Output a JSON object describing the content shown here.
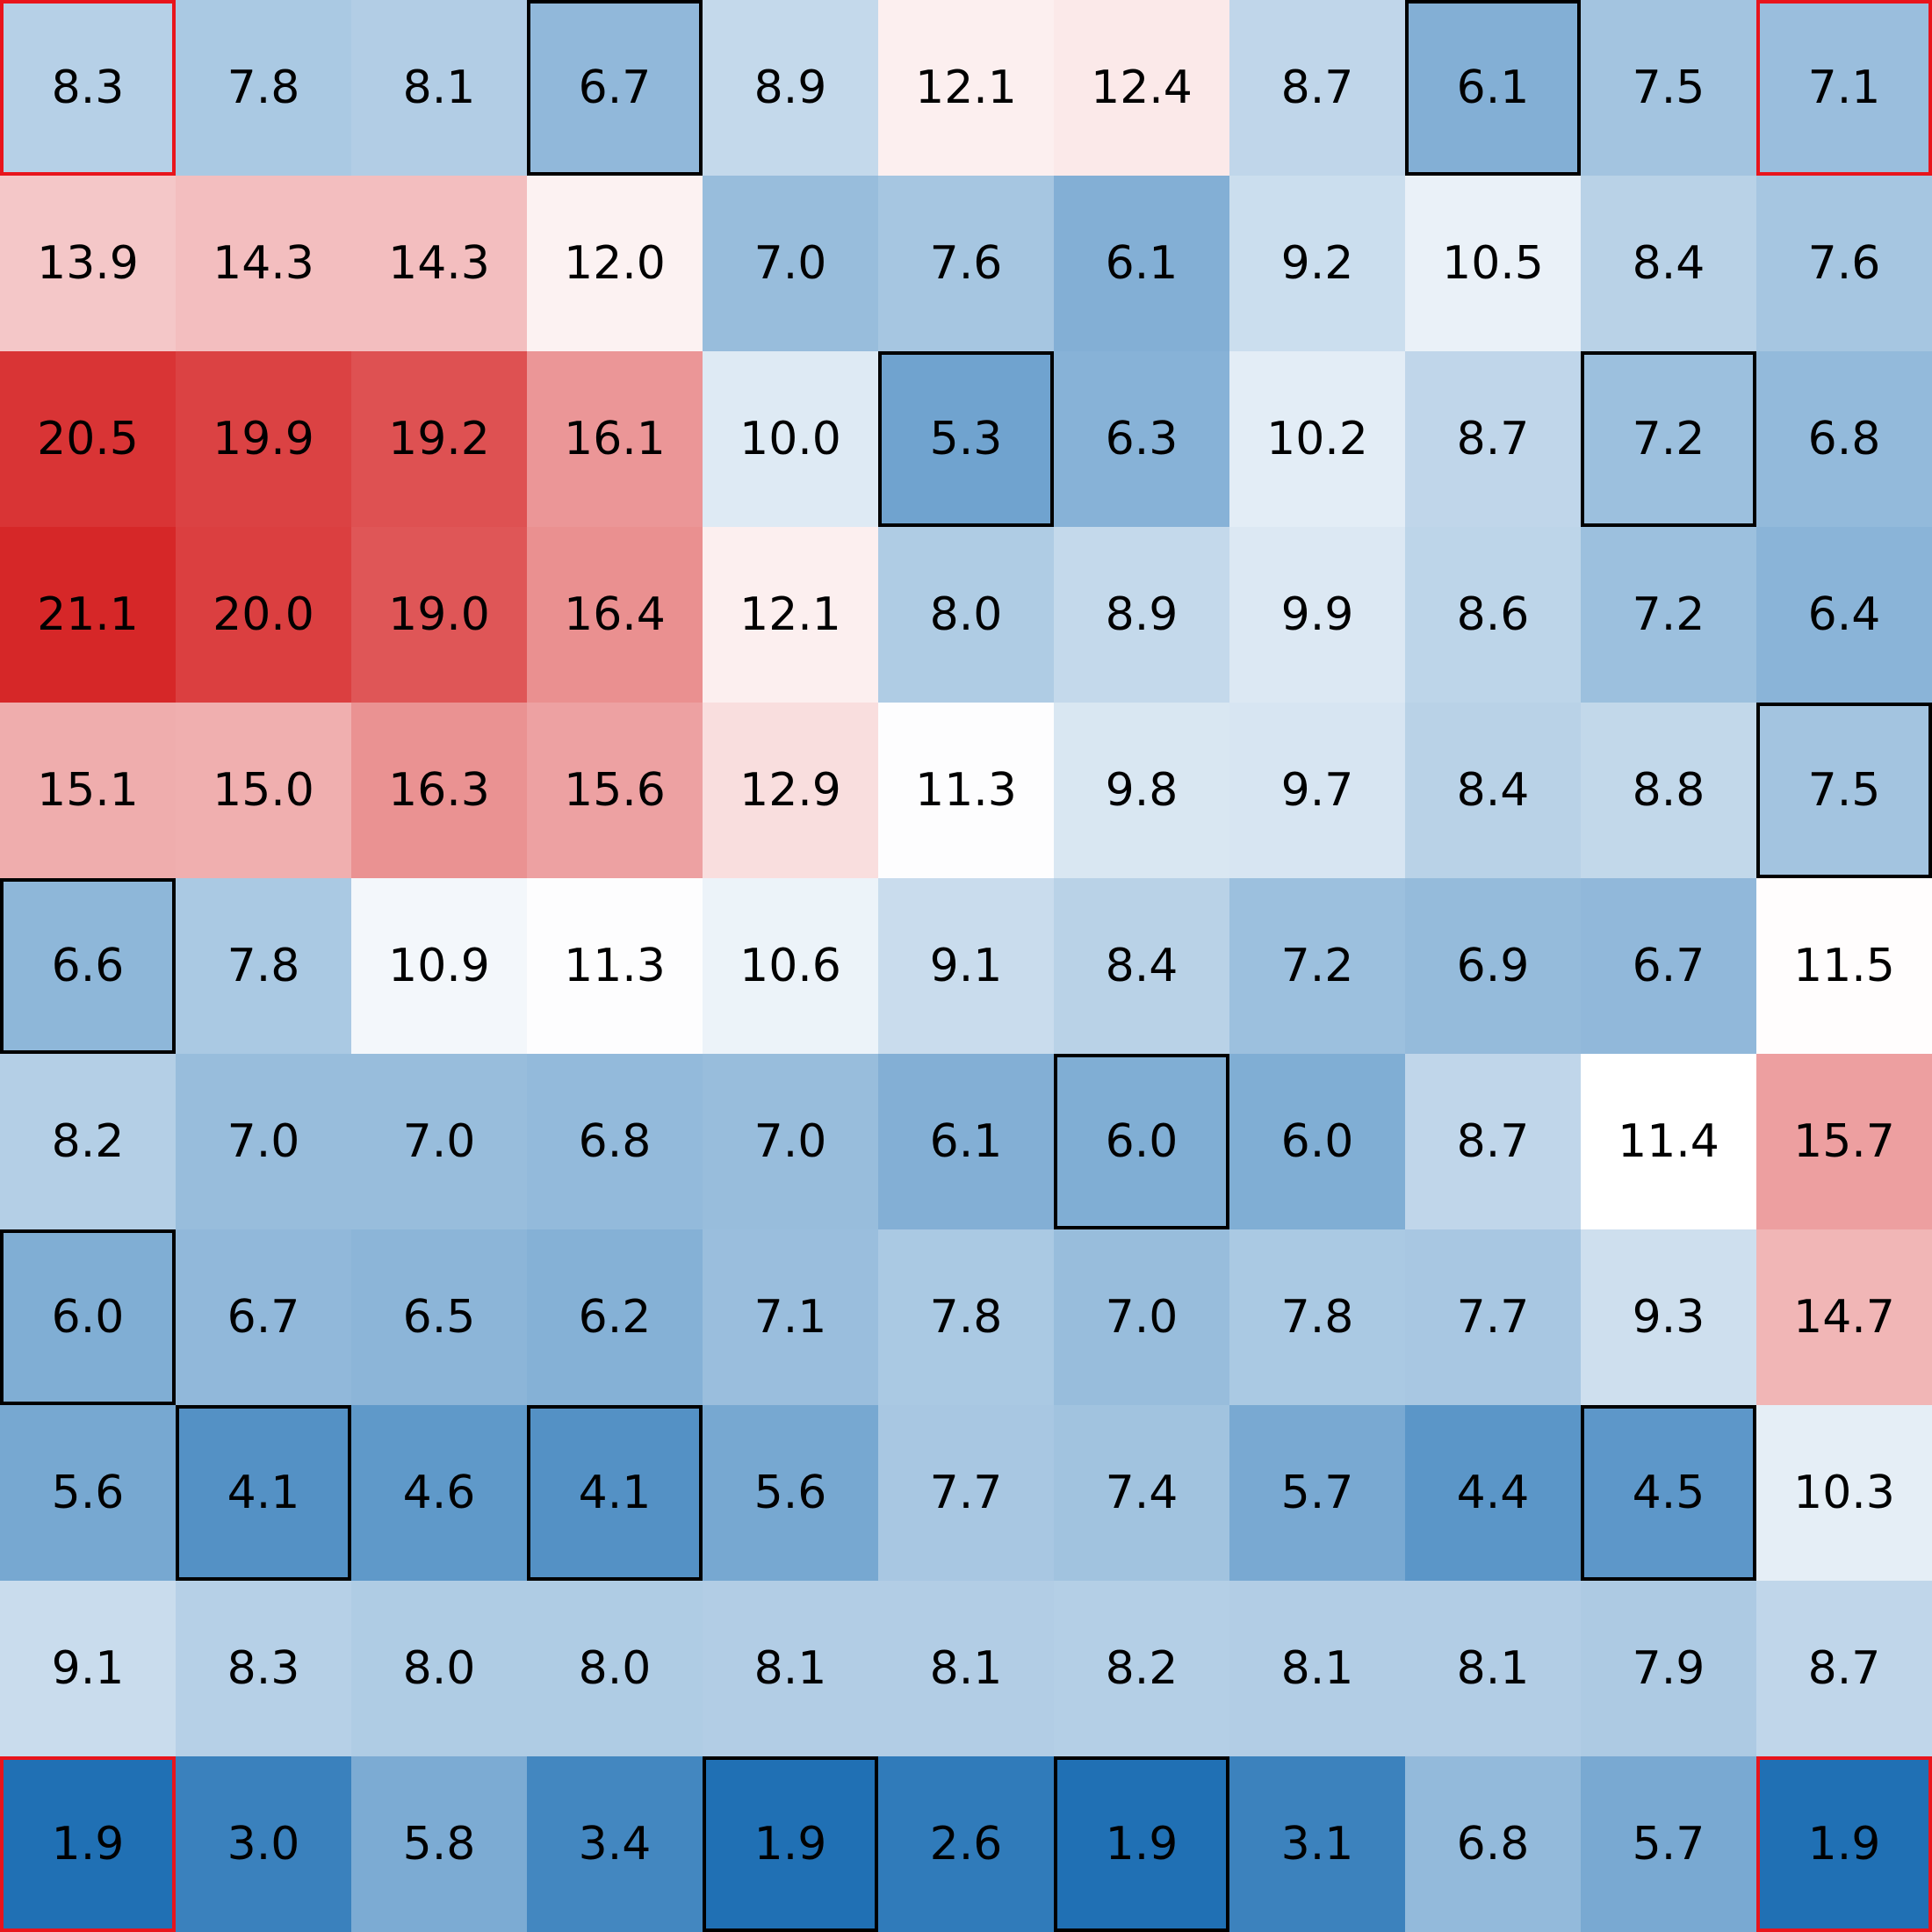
{
  "chart_data": {
    "type": "heatmap",
    "rows": 11,
    "cols": 11,
    "values": [
      [
        8.3,
        7.8,
        8.1,
        6.7,
        8.9,
        12.1,
        12.4,
        8.7,
        6.1,
        7.5,
        7.1
      ],
      [
        13.9,
        14.3,
        14.3,
        12.0,
        7.0,
        7.6,
        6.1,
        9.2,
        10.5,
        8.4,
        7.6
      ],
      [
        20.5,
        19.9,
        19.2,
        16.1,
        10.0,
        5.3,
        6.3,
        10.2,
        8.7,
        7.2,
        6.8
      ],
      [
        21.1,
        20.0,
        19.0,
        16.4,
        12.1,
        8.0,
        8.9,
        9.9,
        8.6,
        7.2,
        6.4
      ],
      [
        15.1,
        15.0,
        16.3,
        15.6,
        12.9,
        11.3,
        9.8,
        9.7,
        8.4,
        8.8,
        7.5
      ],
      [
        6.6,
        7.8,
        10.9,
        11.3,
        10.6,
        9.1,
        8.4,
        7.2,
        6.9,
        6.7,
        11.5
      ],
      [
        8.2,
        7.0,
        7.0,
        6.8,
        7.0,
        6.1,
        6.0,
        6.0,
        8.7,
        11.4,
        15.7
      ],
      [
        6.0,
        6.7,
        6.5,
        6.2,
        7.1,
        7.8,
        7.0,
        7.8,
        7.7,
        9.3,
        14.7
      ],
      [
        5.6,
        4.1,
        4.6,
        4.1,
        5.6,
        7.7,
        7.4,
        5.7,
        4.4,
        4.5,
        10.3
      ],
      [
        9.1,
        8.3,
        8.0,
        8.0,
        8.1,
        8.1,
        8.2,
        8.1,
        8.1,
        7.9,
        8.7
      ],
      [
        1.9,
        3.0,
        5.8,
        3.4,
        1.9,
        2.6,
        1.9,
        3.1,
        6.8,
        5.7,
        1.9
      ]
    ],
    "colormap": {
      "low": "#2070b4",
      "mid": "#ffffff",
      "high": "#d62728",
      "vmin": 1.9,
      "vcenter": 11.4,
      "vmax": 21.1
    },
    "highlight_black": [
      [
        0,
        3
      ],
      [
        0,
        8
      ],
      [
        2,
        5
      ],
      [
        2,
        9
      ],
      [
        4,
        10
      ],
      [
        5,
        0
      ],
      [
        6,
        6
      ],
      [
        7,
        0
      ],
      [
        8,
        1
      ],
      [
        8,
        3
      ],
      [
        8,
        9
      ],
      [
        10,
        4
      ],
      [
        10,
        6
      ]
    ],
    "highlight_red": [
      [
        0,
        0
      ],
      [
        0,
        10
      ],
      [
        10,
        0
      ],
      [
        10,
        10
      ]
    ],
    "highlight_colors": {
      "black": "#000000",
      "red": "#e8141c"
    },
    "title": "",
    "xlabel": "",
    "ylabel": "",
    "grid": false
  }
}
